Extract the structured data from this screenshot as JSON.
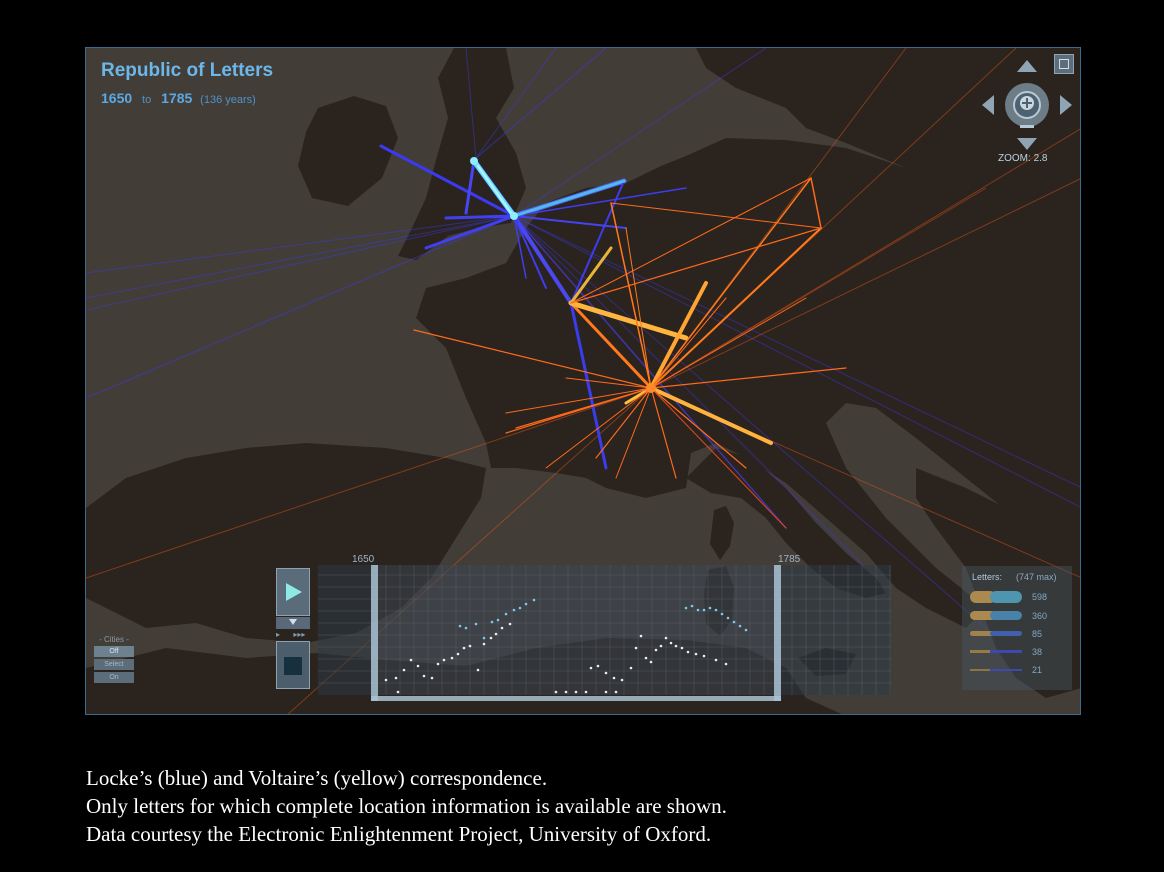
{
  "viz": {
    "title": "Republic of Letters",
    "start_year": "1650",
    "to_label": "to",
    "end_year": "1785",
    "span": "(136 years)"
  },
  "zoom": {
    "label": "ZOOM:",
    "value": "2.8"
  },
  "timeline": {
    "start": "1650",
    "end": "1785"
  },
  "cities_panel": {
    "header": "- Cities -",
    "options": [
      "Off",
      "Select",
      "On"
    ],
    "active": "Off"
  },
  "legend": {
    "title": "Letters:",
    "max": "(747 max)",
    "values": [
      "598",
      "360",
      "85",
      "38",
      "21"
    ]
  },
  "colors": {
    "locke": "#3a3cf0",
    "locke_highlight": "#5fe0f4",
    "voltaire": "#ff7a1c",
    "voltaire_highlight": "#ffc040",
    "land": "#2b231d",
    "sea": "#433d38"
  },
  "caption": [
    "Locke’s (blue) and Voltaire’s (yellow) correspondence.",
    "Only letters for which complete location information is available are shown.",
    "Data courtesy the Electronic Enlightenment Project, University of Oxford."
  ]
}
